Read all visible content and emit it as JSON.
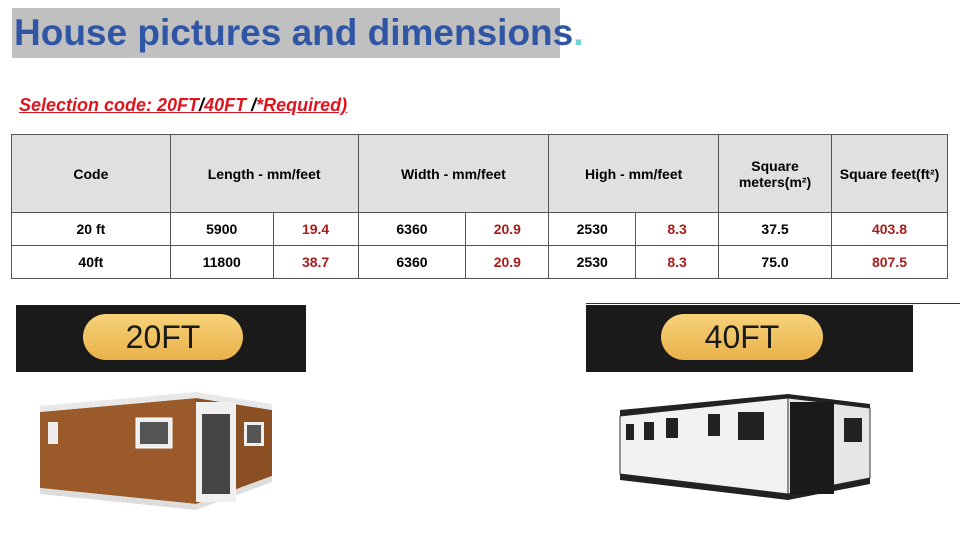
{
  "title": {
    "text": "House pictures and dimensions",
    "dot": "."
  },
  "selection": {
    "prefix": "Selection code: 20FT",
    "slash1": "/",
    "opt2": "40FT ",
    "slash2": "/",
    "suffix": "*Required)"
  },
  "table": {
    "headers": [
      "Code",
      "Length - mm/feet",
      "Width - mm/feet",
      "High - mm/feet",
      "Square meters(m²)",
      "Square feet(ft²)"
    ],
    "rows": [
      {
        "code": "20 ft",
        "length_mm": "5900",
        "length_ft": "19.4",
        "width_mm": "6360",
        "width_ft": "20.9",
        "high_mm": "2530",
        "high_ft": "8.3",
        "sqm": "37.5",
        "sqft": "403.8"
      },
      {
        "code": "40ft",
        "length_mm": "11800",
        "length_ft": "38.7",
        "width_mm": "6360",
        "width_ft": "20.9",
        "high_mm": "2530",
        "high_ft": "8.3",
        "sqm": "75.0",
        "sqft": "807.5"
      }
    ]
  },
  "banners": {
    "left": "20FT",
    "right": "40FT"
  },
  "colors": {
    "title": "#2f55a4",
    "title_bg": "#c0c0c0",
    "accent_red": "#e0141e",
    "value_red": "#a81c1c",
    "pill": "#f0c060"
  }
}
